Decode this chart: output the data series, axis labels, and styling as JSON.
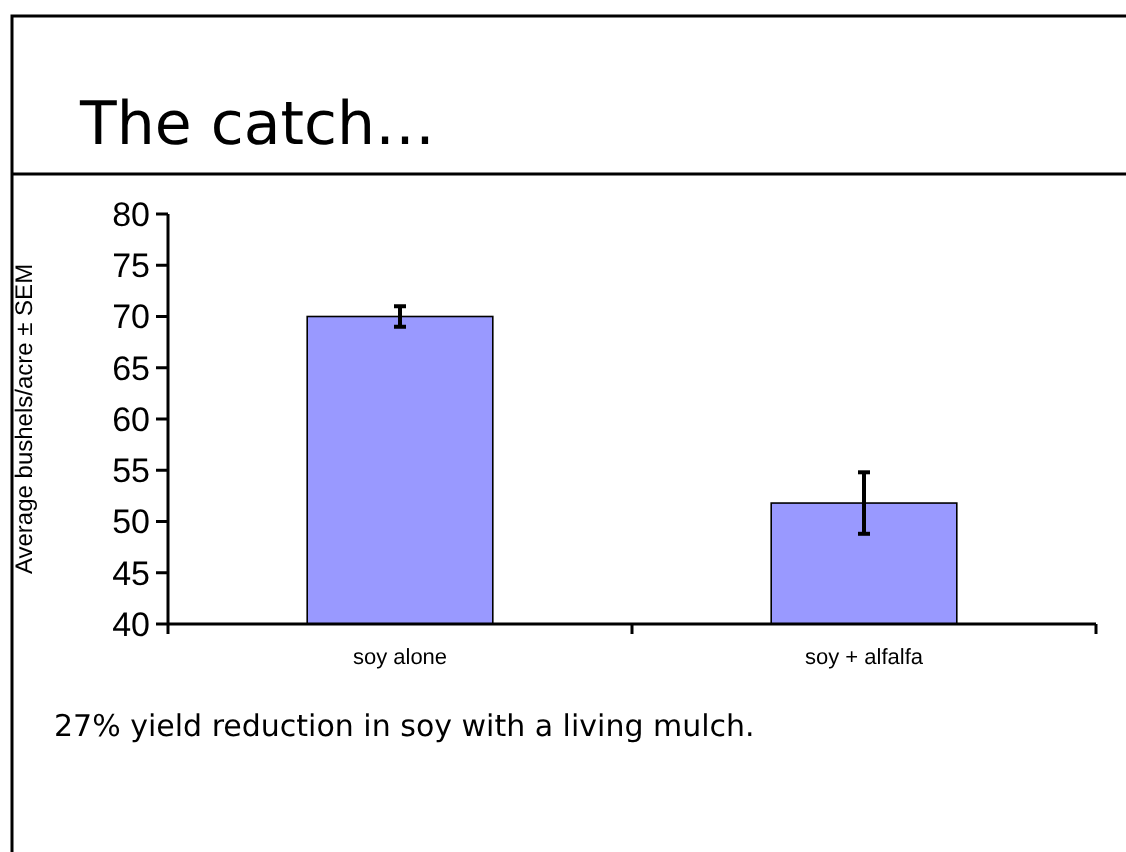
{
  "chart_data": {
    "type": "bar",
    "title": "The catch…",
    "ylabel": "Average bushels/acre ± SEM",
    "categories": [
      "soy alone",
      "soy + alfalfa"
    ],
    "values": [
      70,
      51.8
    ],
    "errors": [
      1,
      3
    ],
    "color": "#9999ff",
    "ylim": [
      40,
      80
    ],
    "yticks": [
      40,
      45,
      50,
      55,
      60,
      65,
      70,
      75,
      80
    ],
    "annotations": [
      "27% yield reduction in soy with a living mulch."
    ]
  }
}
